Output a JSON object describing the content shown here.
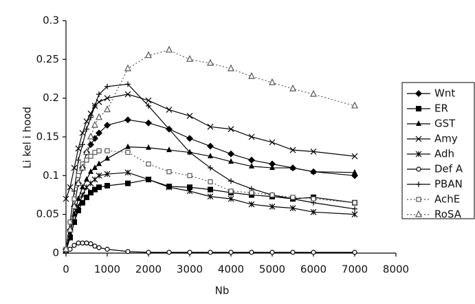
{
  "chart_data": {
    "type": "line",
    "y_label": "Li kel i hood",
    "x_label": "Nb",
    "x": [
      0,
      100,
      200,
      300,
      400,
      500,
      600,
      700,
      800,
      1000,
      1500,
      2000,
      2500,
      3000,
      3500,
      4000,
      4500,
      5000,
      5500,
      6000,
      7000
    ],
    "xlim": [
      0,
      8000
    ],
    "xticks": [
      0,
      1000,
      2000,
      3000,
      4000,
      5000,
      6000,
      7000,
      8000
    ],
    "ylim": [
      0,
      0.3
    ],
    "yticks": [
      0,
      0.05,
      0.1,
      0.15,
      0.2,
      0.25,
      0.3
    ],
    "series": [
      {
        "name": "Wnt",
        "color": "#000000",
        "marker": "diamond",
        "dash": "solid",
        "values": [
          0.005,
          0.03,
          0.06,
          0.09,
          0.11,
          0.13,
          0.14,
          0.148,
          0.155,
          0.165,
          0.172,
          0.168,
          0.16,
          0.148,
          0.138,
          0.128,
          0.12,
          0.115,
          0.11,
          0.105,
          0.1
        ]
      },
      {
        "name": "ER",
        "color": "#000000",
        "marker": "square",
        "dash": "solid",
        "values": [
          0.003,
          0.02,
          0.04,
          0.055,
          0.065,
          0.072,
          0.078,
          0.082,
          0.085,
          0.087,
          0.09,
          0.095,
          0.086,
          0.085,
          0.082,
          0.078,
          0.075,
          0.073,
          0.07,
          0.072,
          0.065
        ]
      },
      {
        "name": "GST",
        "color": "#000000",
        "marker": "triangle",
        "dash": "solid",
        "values": [
          0.003,
          0.025,
          0.05,
          0.07,
          0.085,
          0.095,
          0.105,
          0.11,
          0.115,
          0.122,
          0.137,
          0.136,
          0.133,
          0.13,
          0.125,
          0.118,
          0.112,
          0.11,
          0.11,
          0.105,
          0.104
        ]
      },
      {
        "name": "Amy",
        "color": "#000000",
        "marker": "x",
        "dash": "solid",
        "values": [
          0.07,
          0.085,
          0.11,
          0.135,
          0.155,
          0.17,
          0.18,
          0.19,
          0.195,
          0.2,
          0.205,
          0.197,
          0.185,
          0.177,
          0.163,
          0.16,
          0.15,
          0.143,
          0.133,
          0.131,
          0.125
        ]
      },
      {
        "name": "Adh",
        "color": "#000000",
        "marker": "star",
        "dash": "solid",
        "values": [
          0.003,
          0.02,
          0.04,
          0.06,
          0.075,
          0.085,
          0.09,
          0.095,
          0.1,
          0.102,
          0.104,
          0.095,
          0.085,
          0.08,
          0.073,
          0.07,
          0.063,
          0.06,
          0.058,
          0.053,
          0.05
        ]
      },
      {
        "name": "Def A",
        "color": "#000000",
        "marker": "circle",
        "dash": "solid",
        "values": [
          0.003,
          0.005,
          0.01,
          0.013,
          0.013,
          0.013,
          0.012,
          0.009,
          0.007,
          0.005,
          0.002,
          0.001,
          0.001,
          0.001,
          0.001,
          0.001,
          0.001,
          0.001,
          0.001,
          0.001,
          0.001
        ]
      },
      {
        "name": "PBAN",
        "color": "#000000",
        "marker": "plus",
        "dash": "solid",
        "values": [
          0.005,
          0.04,
          0.08,
          0.12,
          0.14,
          0.16,
          0.175,
          0.19,
          0.205,
          0.215,
          0.218,
          0.19,
          0.16,
          0.13,
          0.11,
          0.093,
          0.083,
          0.075,
          0.07,
          0.065,
          0.057
        ]
      },
      {
        "name": "AchE",
        "color": "#555555",
        "marker": "open-square",
        "dash": "dotted",
        "values": [
          0.005,
          0.04,
          0.07,
          0.1,
          0.115,
          0.12,
          0.125,
          0.13,
          0.132,
          0.132,
          0.13,
          0.115,
          0.105,
          0.1,
          0.092,
          0.08,
          0.078,
          0.075,
          0.072,
          0.07,
          0.065
        ]
      },
      {
        "name": "RoSA",
        "color": "#555555",
        "marker": "open-triangle",
        "dash": "dotted",
        "values": [
          0.005,
          0.03,
          0.06,
          0.09,
          0.11,
          0.13,
          0.15,
          0.165,
          0.175,
          0.185,
          0.238,
          0.255,
          0.262,
          0.25,
          0.245,
          0.238,
          0.228,
          0.22,
          0.212,
          0.205,
          0.19
        ]
      }
    ]
  }
}
